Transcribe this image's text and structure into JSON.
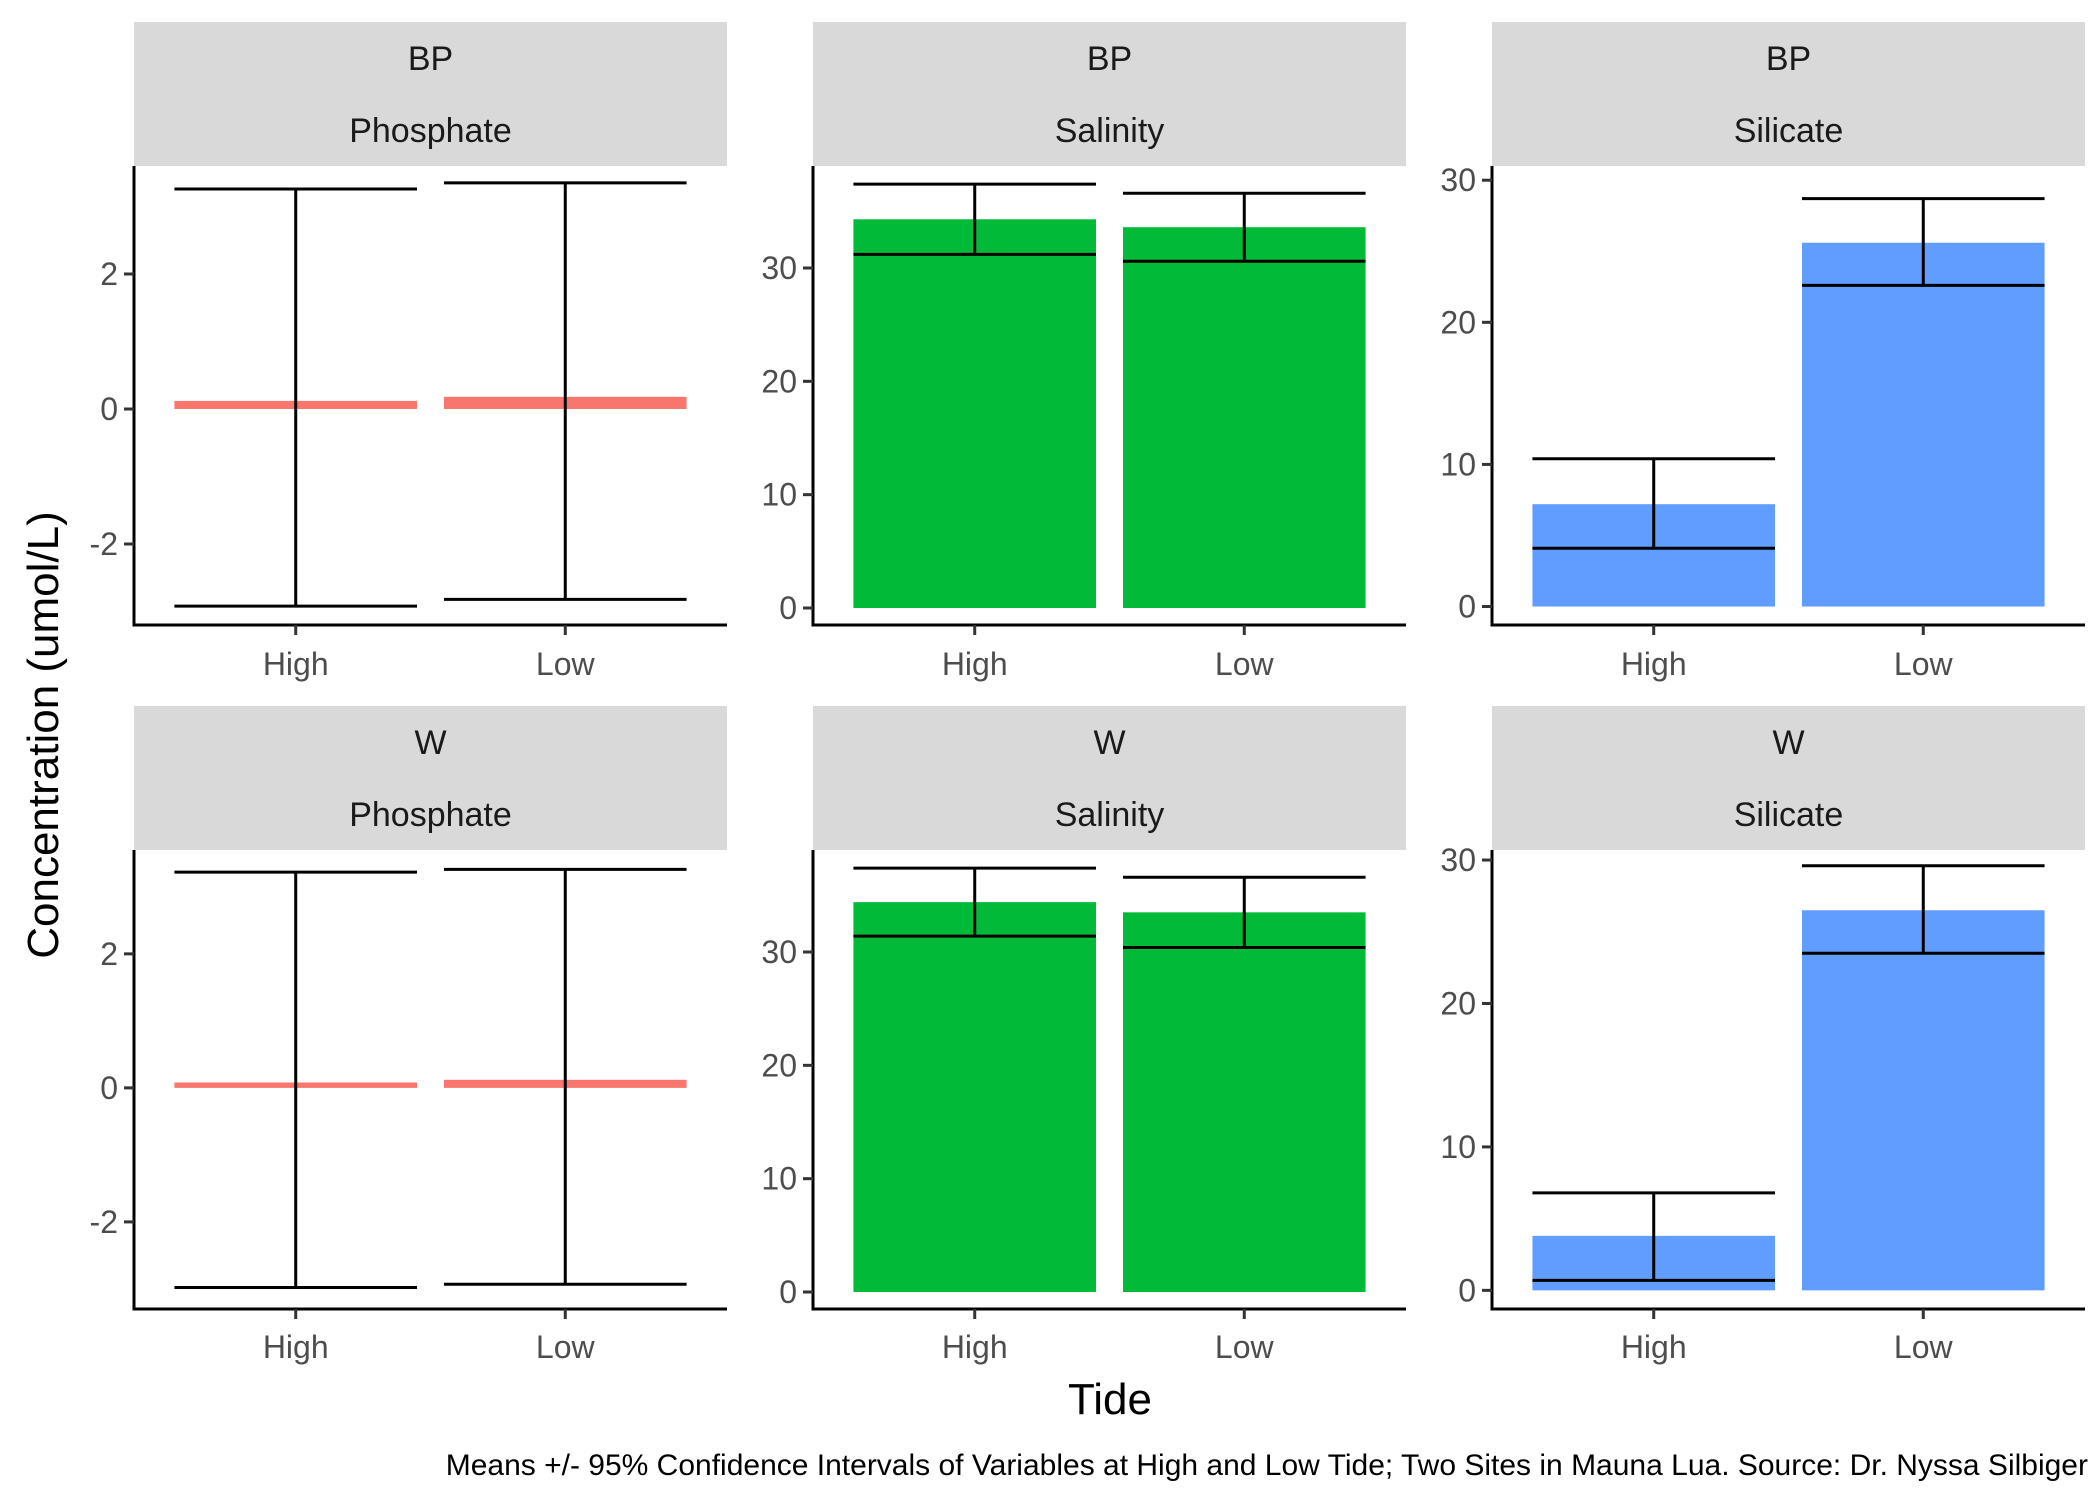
{
  "figure": {
    "y_axis_title": "Concentration (umol/L)",
    "x_axis_title": "Tide",
    "caption": "Means +/- 95% Confidence Intervals of Variables at High and Low Tide; Two Sites in Mauna Lua. Source: Dr. Nyssa Silbiger"
  },
  "chart_data": [
    {
      "type": "bar",
      "strip_top": "BP",
      "strip_bottom": "Phosphate",
      "categories": [
        "High",
        "Low"
      ],
      "color": "#F8766D",
      "values": [
        0.12,
        0.18
      ],
      "ci_low": [
        -2.92,
        -2.82
      ],
      "ci_high": [
        3.26,
        3.35
      ],
      "ylim": [
        -3.2,
        3.6
      ],
      "yticks": [
        -2,
        0,
        2
      ]
    },
    {
      "type": "bar",
      "strip_top": "BP",
      "strip_bottom": "Salinity",
      "categories": [
        "High",
        "Low"
      ],
      "color": "#00BA38",
      "values": [
        34.3,
        33.6
      ],
      "ci_low": [
        31.2,
        30.6
      ],
      "ci_high": [
        37.4,
        36.6
      ],
      "ylim": [
        -1.5,
        39.0
      ],
      "yticks": [
        0,
        10,
        20,
        30
      ]
    },
    {
      "type": "bar",
      "strip_top": "BP",
      "strip_bottom": "Silicate",
      "categories": [
        "High",
        "Low"
      ],
      "color": "#619CFF",
      "values": [
        7.2,
        25.6
      ],
      "ci_low": [
        4.1,
        22.6
      ],
      "ci_high": [
        10.4,
        28.7
      ],
      "ylim": [
        -1.3,
        31.0
      ],
      "yticks": [
        0,
        10,
        20,
        30
      ]
    },
    {
      "type": "bar",
      "strip_top": "W",
      "strip_bottom": "Phosphate",
      "categories": [
        "High",
        "Low"
      ],
      "color": "#F8766D",
      "values": [
        0.08,
        0.12
      ],
      "ci_low": [
        -2.98,
        -2.93
      ],
      "ci_high": [
        3.22,
        3.26
      ],
      "ylim": [
        -3.3,
        3.55
      ],
      "yticks": [
        -2,
        0,
        2
      ]
    },
    {
      "type": "bar",
      "strip_top": "W",
      "strip_bottom": "Salinity",
      "categories": [
        "High",
        "Low"
      ],
      "color": "#00BA38",
      "values": [
        34.4,
        33.5
      ],
      "ci_low": [
        31.4,
        30.4
      ],
      "ci_high": [
        37.4,
        36.6
      ],
      "ylim": [
        -1.5,
        39.0
      ],
      "yticks": [
        0,
        10,
        20,
        30
      ]
    },
    {
      "type": "bar",
      "strip_top": "W",
      "strip_bottom": "Silicate",
      "categories": [
        "High",
        "Low"
      ],
      "color": "#619CFF",
      "values": [
        3.8,
        26.5
      ],
      "ci_low": [
        0.7,
        23.5
      ],
      "ci_high": [
        6.8,
        29.6
      ],
      "ylim": [
        -1.3,
        30.7
      ],
      "yticks": [
        0,
        10,
        20,
        30
      ]
    }
  ]
}
